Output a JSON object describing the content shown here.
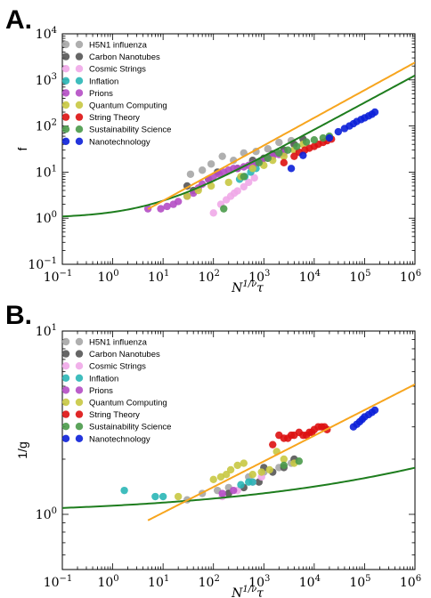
{
  "chart_data": [
    {
      "panel_label": "A.",
      "type": "scatter",
      "ylabel": "f",
      "xlabel": "N^{1/ν}τ",
      "xscale": "log",
      "yscale": "log",
      "xlim": [
        0.1,
        1000000
      ],
      "ylim": [
        0.1,
        10000
      ],
      "xticks": [
        {
          "base": "10",
          "exp": "−1"
        },
        {
          "base": "10",
          "exp": "0"
        },
        {
          "base": "10",
          "exp": "1"
        },
        {
          "base": "10",
          "exp": "2"
        },
        {
          "base": "10",
          "exp": "3"
        },
        {
          "base": "10",
          "exp": "4"
        },
        {
          "base": "10",
          "exp": "5"
        },
        {
          "base": "10",
          "exp": "6"
        }
      ],
      "yticks": [
        {
          "base": "10",
          "exp": "−1"
        },
        {
          "base": "10",
          "exp": "0"
        },
        {
          "base": "10",
          "exp": "1"
        },
        {
          "base": "10",
          "exp": "2"
        },
        {
          "base": "10",
          "exp": "3"
        },
        {
          "base": "10",
          "exp": "4"
        }
      ],
      "legend_position": "top-left",
      "series": [
        {
          "name": "H5N1 influenza",
          "color": "#a6a6a6",
          "points": [
            [
              35,
              9
            ],
            [
              60,
              11
            ],
            [
              90,
              15
            ],
            [
              150,
              22
            ],
            [
              250,
              18
            ],
            [
              400,
              26
            ],
            [
              700,
              28
            ],
            [
              1200,
              32
            ],
            [
              2000,
              44
            ],
            [
              3500,
              48
            ]
          ]
        },
        {
          "name": "Carbon Nanotubes",
          "color": "#555555",
          "points": [
            [
              30,
              5
            ],
            [
              40,
              4
            ],
            [
              80,
              7
            ],
            [
              120,
              10
            ],
            [
              300,
              12
            ],
            [
              600,
              18
            ],
            [
              1000,
              20
            ],
            [
              1500,
              25
            ],
            [
              2500,
              30
            ],
            [
              4000,
              40
            ],
            [
              6000,
              52
            ]
          ]
        },
        {
          "name": "Cosmic Strings",
          "color": "#f0a8e8",
          "points": [
            [
              100,
              1.3
            ],
            [
              140,
              2.0
            ],
            [
              180,
              2.5
            ],
            [
              220,
              3.0
            ],
            [
              260,
              3.5
            ],
            [
              300,
              3.9
            ],
            [
              400,
              4.8
            ],
            [
              500,
              6
            ],
            [
              650,
              7.5
            ]
          ]
        },
        {
          "name": "Inflation",
          "color": "#2ab6b6",
          "points": [
            [
              330,
              7
            ],
            [
              420,
              8
            ],
            [
              550,
              10
            ],
            [
              700,
              12
            ]
          ]
        },
        {
          "name": "Prions",
          "color": "#b44cc4",
          "points": [
            [
              5,
              1.6
            ],
            [
              9,
              1.6
            ],
            [
              12,
              1.8
            ],
            [
              16,
              2.0
            ],
            [
              20,
              2.3
            ],
            [
              30,
              3.0
            ],
            [
              40,
              3.5
            ],
            [
              50,
              4.5
            ],
            [
              60,
              5.5
            ],
            [
              80,
              7
            ],
            [
              100,
              8
            ],
            [
              130,
              9
            ],
            [
              160,
              10
            ],
            [
              200,
              11
            ],
            [
              250,
              12
            ],
            [
              300,
              12
            ],
            [
              400,
              13
            ],
            [
              500,
              14
            ],
            [
              600,
              15
            ],
            [
              700,
              16
            ],
            [
              900,
              18
            ],
            [
              1200,
              20
            ],
            [
              1500,
              22
            ],
            [
              2000,
              24
            ],
            [
              2500,
              26
            ]
          ]
        },
        {
          "name": "Quantum Computing",
          "color": "#c8c842",
          "points": [
            [
              30,
              3
            ],
            [
              50,
              4
            ],
            [
              90,
              5
            ],
            [
              200,
              6
            ],
            [
              350,
              8
            ],
            [
              600,
              12
            ],
            [
              1000,
              14
            ],
            [
              1500,
              18
            ],
            [
              2500,
              22
            ],
            [
              4000,
              30
            ],
            [
              6000,
              40
            ]
          ]
        },
        {
          "name": "String Theory",
          "color": "#dd1111",
          "points": [
            [
              2500,
              16
            ],
            [
              4000,
              22
            ],
            [
              5000,
              27
            ],
            [
              6500,
              30
            ],
            [
              8000,
              33
            ],
            [
              10000,
              36
            ],
            [
              12000,
              40
            ],
            [
              15000,
              44
            ],
            [
              18000,
              48
            ],
            [
              22000,
              52
            ]
          ]
        },
        {
          "name": "Sustainability Science",
          "color": "#4a9a4a",
          "points": [
            [
              160,
              1.6
            ],
            [
              400,
              8
            ],
            [
              800,
              16
            ],
            [
              1200,
              20
            ],
            [
              2000,
              26
            ],
            [
              3000,
              30
            ],
            [
              4500,
              36
            ],
            [
              7000,
              45
            ],
            [
              10000,
              50
            ],
            [
              15000,
              55
            ],
            [
              20000,
              60
            ]
          ]
        },
        {
          "name": "Nanotechnology",
          "color": "#0b1fd8",
          "points": [
            [
              3500,
              12
            ],
            [
              6000,
              23
            ],
            [
              20000,
              55
            ],
            [
              30000,
              75
            ],
            [
              40000,
              88
            ],
            [
              50000,
              100
            ],
            [
              60000,
              112
            ],
            [
              70000,
              125
            ],
            [
              85000,
              138
            ],
            [
              100000,
              150
            ],
            [
              120000,
              165
            ],
            [
              140000,
              180
            ],
            [
              160000,
              200
            ]
          ]
        }
      ],
      "fit_lines": [
        {
          "color": "#1e7d1e",
          "kind": "curve",
          "floor": 1.0,
          "slope": 0.59,
          "coef": 0.36
        },
        {
          "color": "#f7a51e",
          "kind": "power",
          "x0": 5,
          "x1": 1000000,
          "slope": 0.6,
          "coef": 0.6
        }
      ]
    },
    {
      "panel_label": "B.",
      "type": "scatter",
      "ylabel": "1/g",
      "xlabel": "N^{1/ν}τ",
      "xscale": "log",
      "yscale": "log",
      "xlim": [
        0.1,
        1000000
      ],
      "ylim": [
        0.5,
        10
      ],
      "xticks": [
        {
          "base": "10",
          "exp": "−1"
        },
        {
          "base": "10",
          "exp": "0"
        },
        {
          "base": "10",
          "exp": "1"
        },
        {
          "base": "10",
          "exp": "2"
        },
        {
          "base": "10",
          "exp": "3"
        },
        {
          "base": "10",
          "exp": "4"
        },
        {
          "base": "10",
          "exp": "5"
        },
        {
          "base": "10",
          "exp": "6"
        }
      ],
      "yticks": [
        {
          "base": "10",
          "exp": "0"
        },
        {
          "base": "10",
          "exp": "1"
        }
      ],
      "legend_position": "top-left",
      "series": [
        {
          "name": "H5N1 influenza",
          "color": "#a6a6a6",
          "points": [
            [
              30,
              1.2
            ],
            [
              60,
              1.3
            ],
            [
              120,
              1.35
            ],
            [
              200,
              1.4
            ],
            [
              500,
              1.6
            ],
            [
              1000,
              1.7
            ],
            [
              2000,
              1.8
            ],
            [
              3500,
              1.9
            ]
          ]
        },
        {
          "name": "Carbon Nanotubes",
          "color": "#555555",
          "points": [
            [
              200,
              1.3
            ],
            [
              400,
              1.4
            ],
            [
              800,
              1.5
            ],
            [
              1000,
              1.8
            ],
            [
              1500,
              1.7
            ],
            [
              2500,
              1.8
            ],
            [
              4000,
              2.0
            ]
          ]
        },
        {
          "name": "Cosmic Strings",
          "color": "#f0a8e8",
          "points": [
            [
              150,
              1.25
            ],
            [
              300,
              1.35
            ],
            [
              600,
              1.5
            ],
            [
              900,
              1.6
            ]
          ]
        },
        {
          "name": "Inflation",
          "color": "#2ab6b6",
          "points": [
            [
              1.7,
              1.35
            ],
            [
              7,
              1.25
            ],
            [
              10,
              1.25
            ],
            [
              350,
              1.45
            ],
            [
              500,
              1.5
            ],
            [
              600,
              1.5
            ]
          ]
        },
        {
          "name": "Prions",
          "color": "#b44cc4",
          "points": [
            [
              150,
              1.3
            ],
            [
              250,
              1.35
            ]
          ]
        },
        {
          "name": "Quantum Computing",
          "color": "#c8c842",
          "points": [
            [
              20,
              1.25
            ],
            [
              100,
              1.55
            ],
            [
              140,
              1.6
            ],
            [
              180,
              1.65
            ],
            [
              220,
              1.75
            ],
            [
              300,
              1.85
            ],
            [
              400,
              1.9
            ],
            [
              600,
              1.65
            ],
            [
              900,
              1.7
            ],
            [
              1300,
              1.75
            ],
            [
              1800,
              2.2
            ],
            [
              2500,
              2.0
            ],
            [
              4000,
              1.9
            ]
          ]
        },
        {
          "name": "String Theory",
          "color": "#dd1111",
          "points": [
            [
              1500,
              2.4
            ],
            [
              2000,
              2.7
            ],
            [
              2500,
              2.6
            ],
            [
              3000,
              2.6
            ],
            [
              3500,
              2.7
            ],
            [
              4000,
              2.7
            ],
            [
              5000,
              2.8
            ],
            [
              6000,
              2.7
            ],
            [
              7000,
              2.7
            ],
            [
              8000,
              2.8
            ],
            [
              9000,
              2.8
            ],
            [
              10000,
              2.9
            ],
            [
              12000,
              3.0
            ],
            [
              14000,
              3.0
            ],
            [
              16000,
              3.0
            ],
            [
              18000,
              2.9
            ]
          ]
        },
        {
          "name": "Sustainability Science",
          "color": "#4a9a4a",
          "points": [
            [
              2500,
              1.85
            ],
            [
              5000,
              1.95
            ]
          ]
        },
        {
          "name": "Nanotechnology",
          "color": "#0b1fd8",
          "points": [
            [
              60000,
              3.0
            ],
            [
              70000,
              3.1
            ],
            [
              80000,
              3.2
            ],
            [
              90000,
              3.3
            ],
            [
              100000,
              3.4
            ],
            [
              120000,
              3.5
            ],
            [
              140000,
              3.6
            ],
            [
              160000,
              3.7
            ]
          ]
        }
      ],
      "fit_lines": [
        {
          "color": "#1e7d1e",
          "kind": "curve",
          "floor": 1.0,
          "slope": 0.14,
          "coef": 0.115
        },
        {
          "color": "#f7a51e",
          "kind": "power",
          "x0": 5,
          "x1": 1000000,
          "slope": 0.14,
          "coef": 0.74
        }
      ]
    }
  ]
}
